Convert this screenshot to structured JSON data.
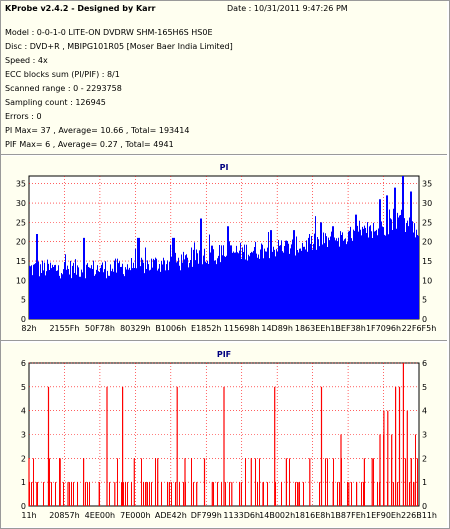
{
  "header": {
    "title": "KProbe v2.4.2 - Designed by Karr",
    "date": "Date : 10/31/2011 9:47:26 PM",
    "lines": [
      "Model : 0-0-1-0 LITE-ON DVDRW SHM-165H6S HS0E",
      "Disc : DVD+R , MBIPG101R05 [Moser Baer India Limited]",
      "Speed : 4x",
      "ECC blocks sum (PI/PIF) : 8/1",
      "Scanned range : 0 - 2293758",
      "Sampling count : 126945",
      "Errors : 0",
      "PI Max= 37 , Average= 10.66 , Total= 193414",
      "PIF Max= 6 , Average= 0.27 , Total= 4941"
    ]
  },
  "colors": {
    "bar": "#0000ff",
    "pif_bar": "#ff0000",
    "grid": "#ff0000",
    "background": "#fffff0"
  },
  "chart_data": [
    {
      "type": "bar",
      "title": "PI",
      "ylim": [
        0,
        37
      ],
      "yticks": [
        0,
        5,
        10,
        15,
        20,
        25,
        30,
        35
      ],
      "xticks": [
        "82h",
        "2155Fh",
        "50F78h",
        "80329h",
        "B1006h",
        "E1852h",
        "115698h",
        "14D89h",
        "1863EEh",
        "1BEF38h",
        "1F7096h",
        "22F6F5h"
      ],
      "grid": "dotted",
      "profile": [
        [
          0,
          13
        ],
        [
          0.1,
          13
        ],
        [
          0.2,
          13
        ],
        [
          0.3,
          14
        ],
        [
          0.4,
          15
        ],
        [
          0.5,
          17
        ],
        [
          0.6,
          18
        ],
        [
          0.7,
          19
        ],
        [
          0.8,
          21
        ],
        [
          0.9,
          23
        ],
        [
          0.95,
          26
        ],
        [
          1.0,
          22
        ]
      ],
      "peaks": [
        [
          0.02,
          22
        ],
        [
          0.14,
          21
        ],
        [
          0.28,
          21
        ],
        [
          0.37,
          21
        ],
        [
          0.44,
          26
        ],
        [
          0.47,
          19
        ],
        [
          0.51,
          24
        ],
        [
          0.62,
          23
        ],
        [
          0.68,
          23
        ],
        [
          0.75,
          25
        ],
        [
          0.78,
          24
        ],
        [
          0.84,
          27
        ],
        [
          0.9,
          31
        ],
        [
          0.92,
          32
        ],
        [
          0.94,
          34
        ],
        [
          0.96,
          37
        ],
        [
          0.98,
          33
        ]
      ]
    },
    {
      "type": "bar",
      "title": "PIF",
      "ylim": [
        0,
        6
      ],
      "yticks": [
        0,
        1,
        2,
        3,
        4,
        5,
        6
      ],
      "xticks": [
        "11h",
        "20857h",
        "4EE00h",
        "7E000h",
        "ADE42h",
        "DF799h",
        "1133D6h",
        "14B002h",
        "1816E8h",
        "1B87FEh",
        "1EF90Eh",
        "226B11h"
      ],
      "grid": "dotted",
      "values": [
        [
          0.0,
          2
        ],
        [
          0.02,
          1
        ],
        [
          0.05,
          5
        ],
        [
          0.08,
          2
        ],
        [
          0.1,
          1
        ],
        [
          0.14,
          2
        ],
        [
          0.18,
          1
        ],
        [
          0.2,
          5
        ],
        [
          0.22,
          1
        ],
        [
          0.24,
          5
        ],
        [
          0.27,
          2
        ],
        [
          0.3,
          1
        ],
        [
          0.33,
          2
        ],
        [
          0.36,
          1
        ],
        [
          0.38,
          5
        ],
        [
          0.4,
          2
        ],
        [
          0.43,
          1
        ],
        [
          0.45,
          2
        ],
        [
          0.47,
          1
        ],
        [
          0.5,
          5
        ],
        [
          0.52,
          1
        ],
        [
          0.54,
          1
        ],
        [
          0.57,
          2
        ],
        [
          0.6,
          1
        ],
        [
          0.63,
          5
        ],
        [
          0.66,
          2
        ],
        [
          0.69,
          1
        ],
        [
          0.72,
          2
        ],
        [
          0.75,
          5
        ],
        [
          0.78,
          1
        ],
        [
          0.8,
          3
        ],
        [
          0.82,
          1
        ],
        [
          0.84,
          1
        ],
        [
          0.86,
          2
        ],
        [
          0.88,
          2
        ],
        [
          0.9,
          3
        ],
        [
          0.91,
          4
        ],
        [
          0.92,
          4
        ],
        [
          0.93,
          3
        ],
        [
          0.94,
          5
        ],
        [
          0.95,
          5
        ],
        [
          0.96,
          6
        ],
        [
          0.97,
          4
        ],
        [
          0.98,
          2
        ],
        [
          0.99,
          1
        ]
      ]
    }
  ]
}
